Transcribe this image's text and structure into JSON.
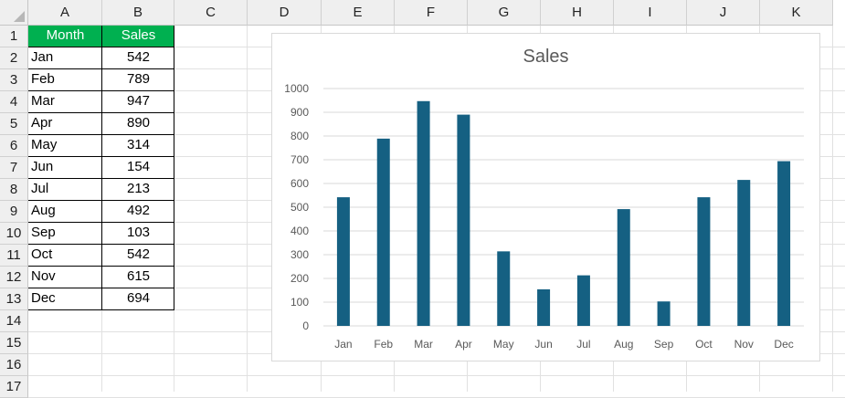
{
  "sheet": {
    "columns": [
      "A",
      "B",
      "C",
      "D",
      "E",
      "F",
      "G",
      "H",
      "I",
      "J",
      "K"
    ],
    "rows": [
      "1",
      "2",
      "3",
      "4",
      "5",
      "6",
      "7",
      "8",
      "9",
      "10",
      "11",
      "12",
      "13",
      "14",
      "15",
      "16",
      "17"
    ],
    "table": {
      "headers": [
        "Month",
        "Sales"
      ],
      "rows": [
        [
          "Jan",
          "542"
        ],
        [
          "Feb",
          "789"
        ],
        [
          "Mar",
          "947"
        ],
        [
          "Apr",
          "890"
        ],
        [
          "May",
          "314"
        ],
        [
          "Jun",
          "154"
        ],
        [
          "Jul",
          "213"
        ],
        [
          "Aug",
          "492"
        ],
        [
          "Sep",
          "103"
        ],
        [
          "Oct",
          "542"
        ],
        [
          "Nov",
          "615"
        ],
        [
          "Dec",
          "694"
        ]
      ]
    },
    "header_color": "#00b050"
  },
  "chart_data": {
    "type": "bar",
    "title": "Sales",
    "categories": [
      "Jan",
      "Feb",
      "Mar",
      "Apr",
      "May",
      "Jun",
      "Jul",
      "Aug",
      "Sep",
      "Oct",
      "Nov",
      "Dec"
    ],
    "values": [
      542,
      789,
      947,
      890,
      314,
      154,
      213,
      492,
      103,
      542,
      615,
      694
    ],
    "ylim": [
      0,
      1000
    ],
    "yticks": [
      "0",
      "100",
      "200",
      "300",
      "400",
      "500",
      "600",
      "700",
      "800",
      "900",
      "1000"
    ],
    "grid": true,
    "bar_color": "#156082",
    "xlabel": "",
    "ylabel": ""
  }
}
